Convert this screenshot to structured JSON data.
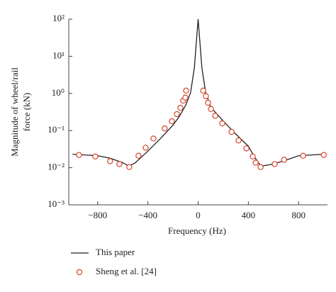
{
  "chart_data": {
    "type": "line",
    "ylabel": [
      "Magnitude of wheel/rail",
      "force (kN)"
    ],
    "xlabel": "Frequency (Hz)",
    "xlim": [
      -1030,
      1030
    ],
    "ylim": [
      0.001,
      100
    ],
    "log_y": true,
    "xticks": [
      {
        "value": -800,
        "label": "−800"
      },
      {
        "value": -400,
        "label": "−400"
      },
      0,
      400,
      800
    ],
    "yticks": [
      {
        "value": 0.001,
        "label": "10⁻³"
      },
      {
        "value": 0.01,
        "label": "10⁻²"
      },
      {
        "value": 0.1,
        "label": "10⁻¹"
      },
      {
        "value": 1,
        "label": "10⁰"
      },
      {
        "value": 10,
        "label": "10¹"
      },
      {
        "value": 100,
        "label": "10²"
      }
    ],
    "series": [
      {
        "name": "This paper",
        "style": "line",
        "color": "#222222",
        "x": [
          -1000,
          -800,
          -700,
          -600,
          -550,
          -500,
          -400,
          -300,
          -200,
          -150,
          -100,
          -60,
          -30,
          0,
          30,
          60,
          100,
          150,
          200,
          300,
          400,
          450,
          500,
          600,
          700,
          800,
          1000
        ],
        "values": [
          0.023,
          0.021,
          0.018,
          0.0136,
          0.011,
          0.0136,
          0.028,
          0.061,
          0.14,
          0.24,
          0.47,
          1.05,
          4.9,
          100,
          4.9,
          1.05,
          0.43,
          0.28,
          0.18,
          0.08,
          0.038,
          0.019,
          0.011,
          0.0125,
          0.016,
          0.021,
          0.023
        ]
      },
      {
        "name": "Sheng et al. [24]",
        "style": "markers",
        "color": "#d9442b",
        "x": [
          -949,
          -819,
          -701,
          -627,
          -548,
          -475,
          -418,
          -356,
          -266,
          -209,
          -169,
          -141,
          -119,
          -102,
          -96,
          40,
          62,
          79,
          102,
          136,
          192,
          266,
          322,
          384,
          435,
          458,
          497,
          610,
          684,
          836,
          1000
        ],
        "values": [
          0.022,
          0.02,
          0.015,
          0.0125,
          0.0104,
          0.021,
          0.0345,
          0.061,
          0.114,
          0.178,
          0.277,
          0.41,
          0.64,
          0.77,
          1.19,
          1.19,
          0.84,
          0.56,
          0.38,
          0.25,
          0.156,
          0.092,
          0.054,
          0.033,
          0.02,
          0.0136,
          0.0104,
          0.0125,
          0.0163,
          0.021,
          0.022
        ]
      }
    ]
  }
}
